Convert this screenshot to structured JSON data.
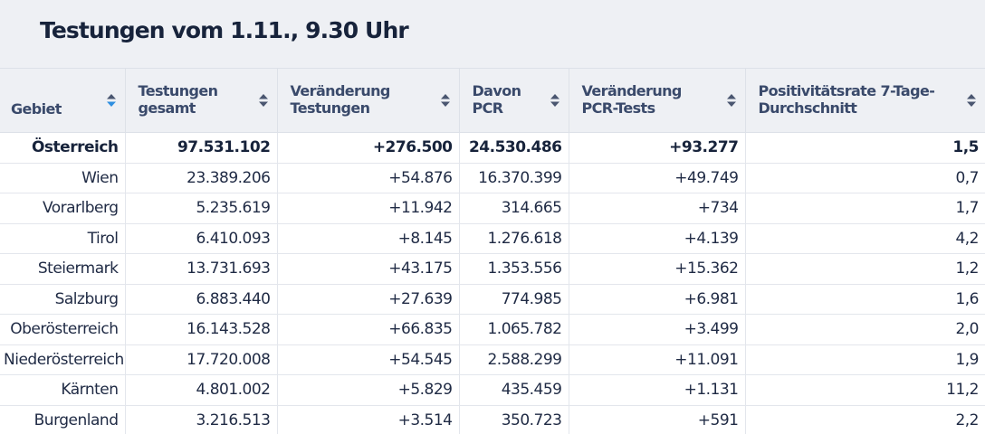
{
  "title": "Testungen vom 1.11., 9.30 Uhr",
  "columns": [
    {
      "label": "Gebiet",
      "sort": "active"
    },
    {
      "label": "Testungen gesamt",
      "sort": "none"
    },
    {
      "label": "Veränderung Testungen",
      "sort": "none"
    },
    {
      "label": "Davon PCR",
      "sort": "none"
    },
    {
      "label": "Veränderung PCR-Tests",
      "sort": "none"
    },
    {
      "label": "Positivitätsrate 7-Tage-Durchschnitt",
      "sort": "none"
    }
  ],
  "rows": [
    [
      "Österreich",
      "97.531.102",
      "+276.500",
      "24.530.486",
      "+93.277",
      "1,5"
    ],
    [
      "Wien",
      "23.389.206",
      "+54.876",
      "16.370.399",
      "+49.749",
      "0,7"
    ],
    [
      "Vorarlberg",
      "5.235.619",
      "+11.942",
      "314.665",
      "+734",
      "1,7"
    ],
    [
      "Tirol",
      "6.410.093",
      "+8.145",
      "1.276.618",
      "+4.139",
      "4,2"
    ],
    [
      "Steiermark",
      "13.731.693",
      "+43.175",
      "1.353.556",
      "+15.362",
      "1,2"
    ],
    [
      "Salzburg",
      "6.883.440",
      "+27.639",
      "774.985",
      "+6.981",
      "1,6"
    ],
    [
      "Oberösterreich",
      "16.143.528",
      "+66.835",
      "1.065.782",
      "+3.499",
      "2,0"
    ],
    [
      "Niederösterreich",
      "17.720.008",
      "+54.545",
      "2.588.299",
      "+11.091",
      "1,9"
    ],
    [
      "Kärnten",
      "4.801.002",
      "+5.829",
      "435.459",
      "+1.131",
      "11,2"
    ],
    [
      "Burgenland",
      "3.216.513",
      "+3.514",
      "350.723",
      "+591",
      "2,2"
    ]
  ],
  "icons": {
    "sort": "sort-arrows-icon"
  },
  "colors": {
    "header_bg": "#eef0f4",
    "text": "#1f2a44",
    "header_text": "#3a4a6b",
    "sort_inactive": "#4a5670",
    "sort_active": "#2f8fe0"
  }
}
